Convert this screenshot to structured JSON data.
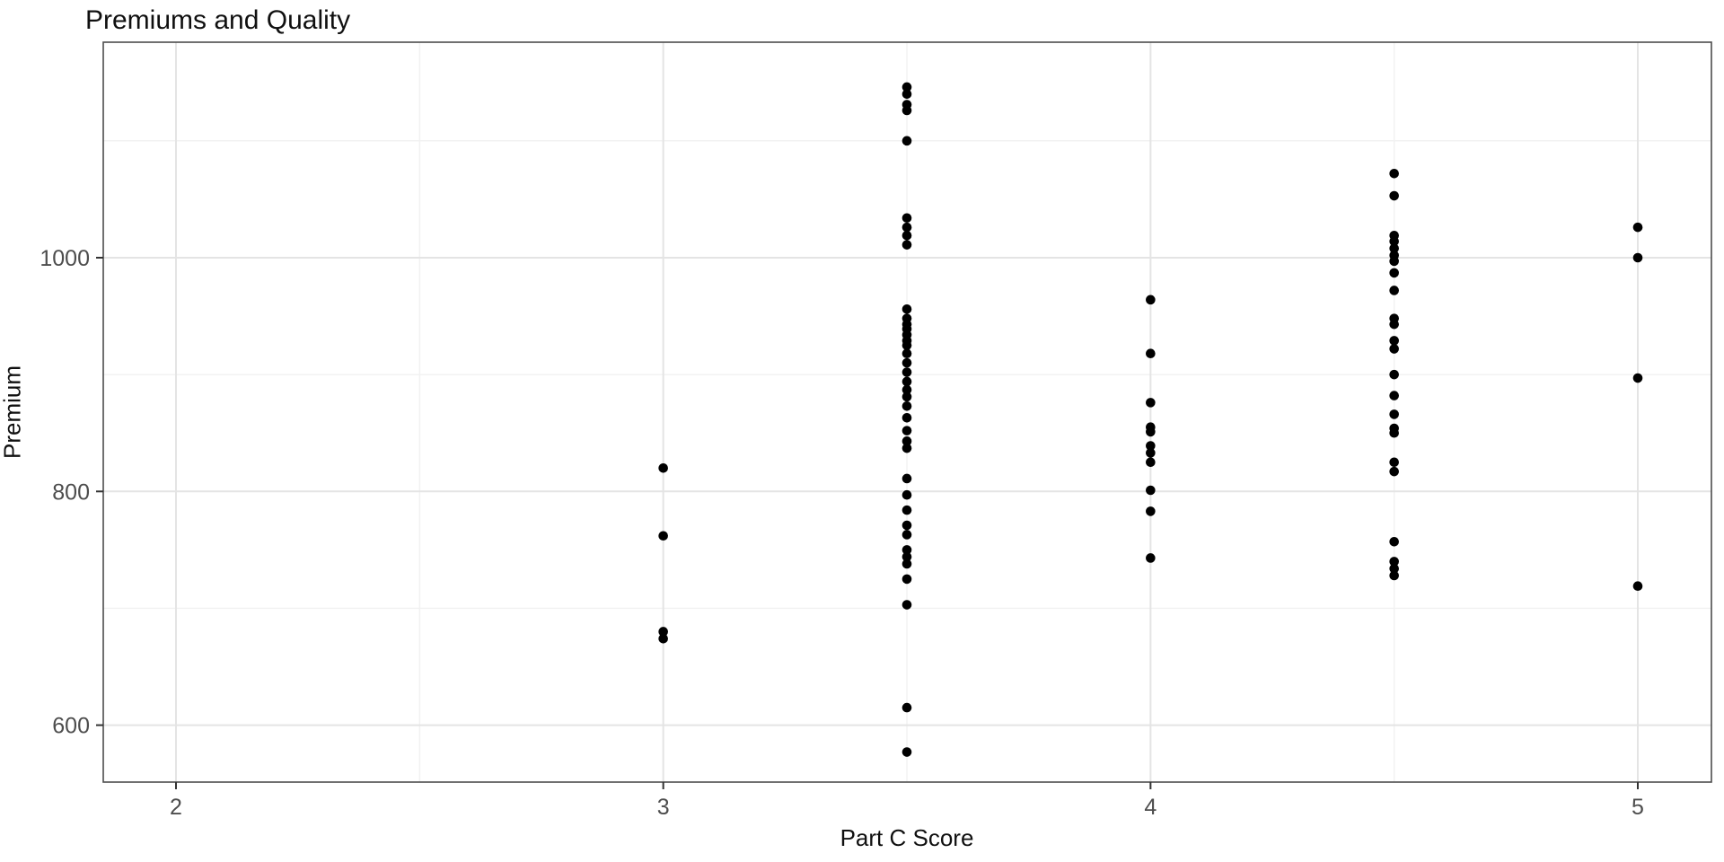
{
  "title": "Premiums and Quality",
  "chart_data": {
    "type": "scatter",
    "title": "Premiums and Quality",
    "xlabel": "Part C Score",
    "ylabel": "Premium",
    "xlim": [
      1.85,
      5.15
    ],
    "ylim": [
      551,
      1185
    ],
    "x_ticks": [
      2,
      3,
      4,
      5
    ],
    "x_minor_ticks": [
      2.5,
      3.5,
      4.5
    ],
    "y_ticks": [
      600,
      800,
      1000
    ],
    "y_minor_ticks": [
      700,
      900,
      1100
    ],
    "grid": "major and minor, light gray on white",
    "legend_position": "none",
    "point_shape": "filled-circle",
    "groups": [
      {
        "x": 3,
        "premiums": [
          820,
          762,
          680,
          674
        ]
      },
      {
        "x": 3.5,
        "premiums": [
          1146,
          1140,
          1131,
          1126,
          1100,
          1034,
          1026,
          1019,
          1011,
          956,
          948,
          943,
          939,
          934,
          929,
          925,
          918,
          910,
          902,
          894,
          887,
          881,
          873,
          863,
          852,
          843,
          837,
          811,
          797,
          784,
          771,
          763,
          750,
          744,
          738,
          725,
          703,
          615,
          577
        ]
      },
      {
        "x": 4,
        "premiums": [
          964,
          918,
          876,
          855,
          851,
          839,
          833,
          825,
          801,
          783,
          743
        ]
      },
      {
        "x": 4.5,
        "premiums": [
          1072,
          1053,
          1019,
          1014,
          1008,
          1002,
          997,
          987,
          972,
          948,
          943,
          929,
          922,
          900,
          882,
          866,
          854,
          850,
          825,
          817,
          757,
          740,
          734,
          728
        ]
      },
      {
        "x": 5,
        "premiums": [
          1026,
          1000,
          897,
          719
        ]
      }
    ]
  },
  "colors": {
    "background": "#ffffff",
    "panel_background": "#ffffff",
    "panel_border": "#4d4d4d",
    "grid_major": "#e4e4e4",
    "grid_minor": "#f1f1f1",
    "tick_mark": "#333333",
    "tick_label": "#4d4d4d",
    "axis_title": "#101010",
    "point": "#000000"
  }
}
